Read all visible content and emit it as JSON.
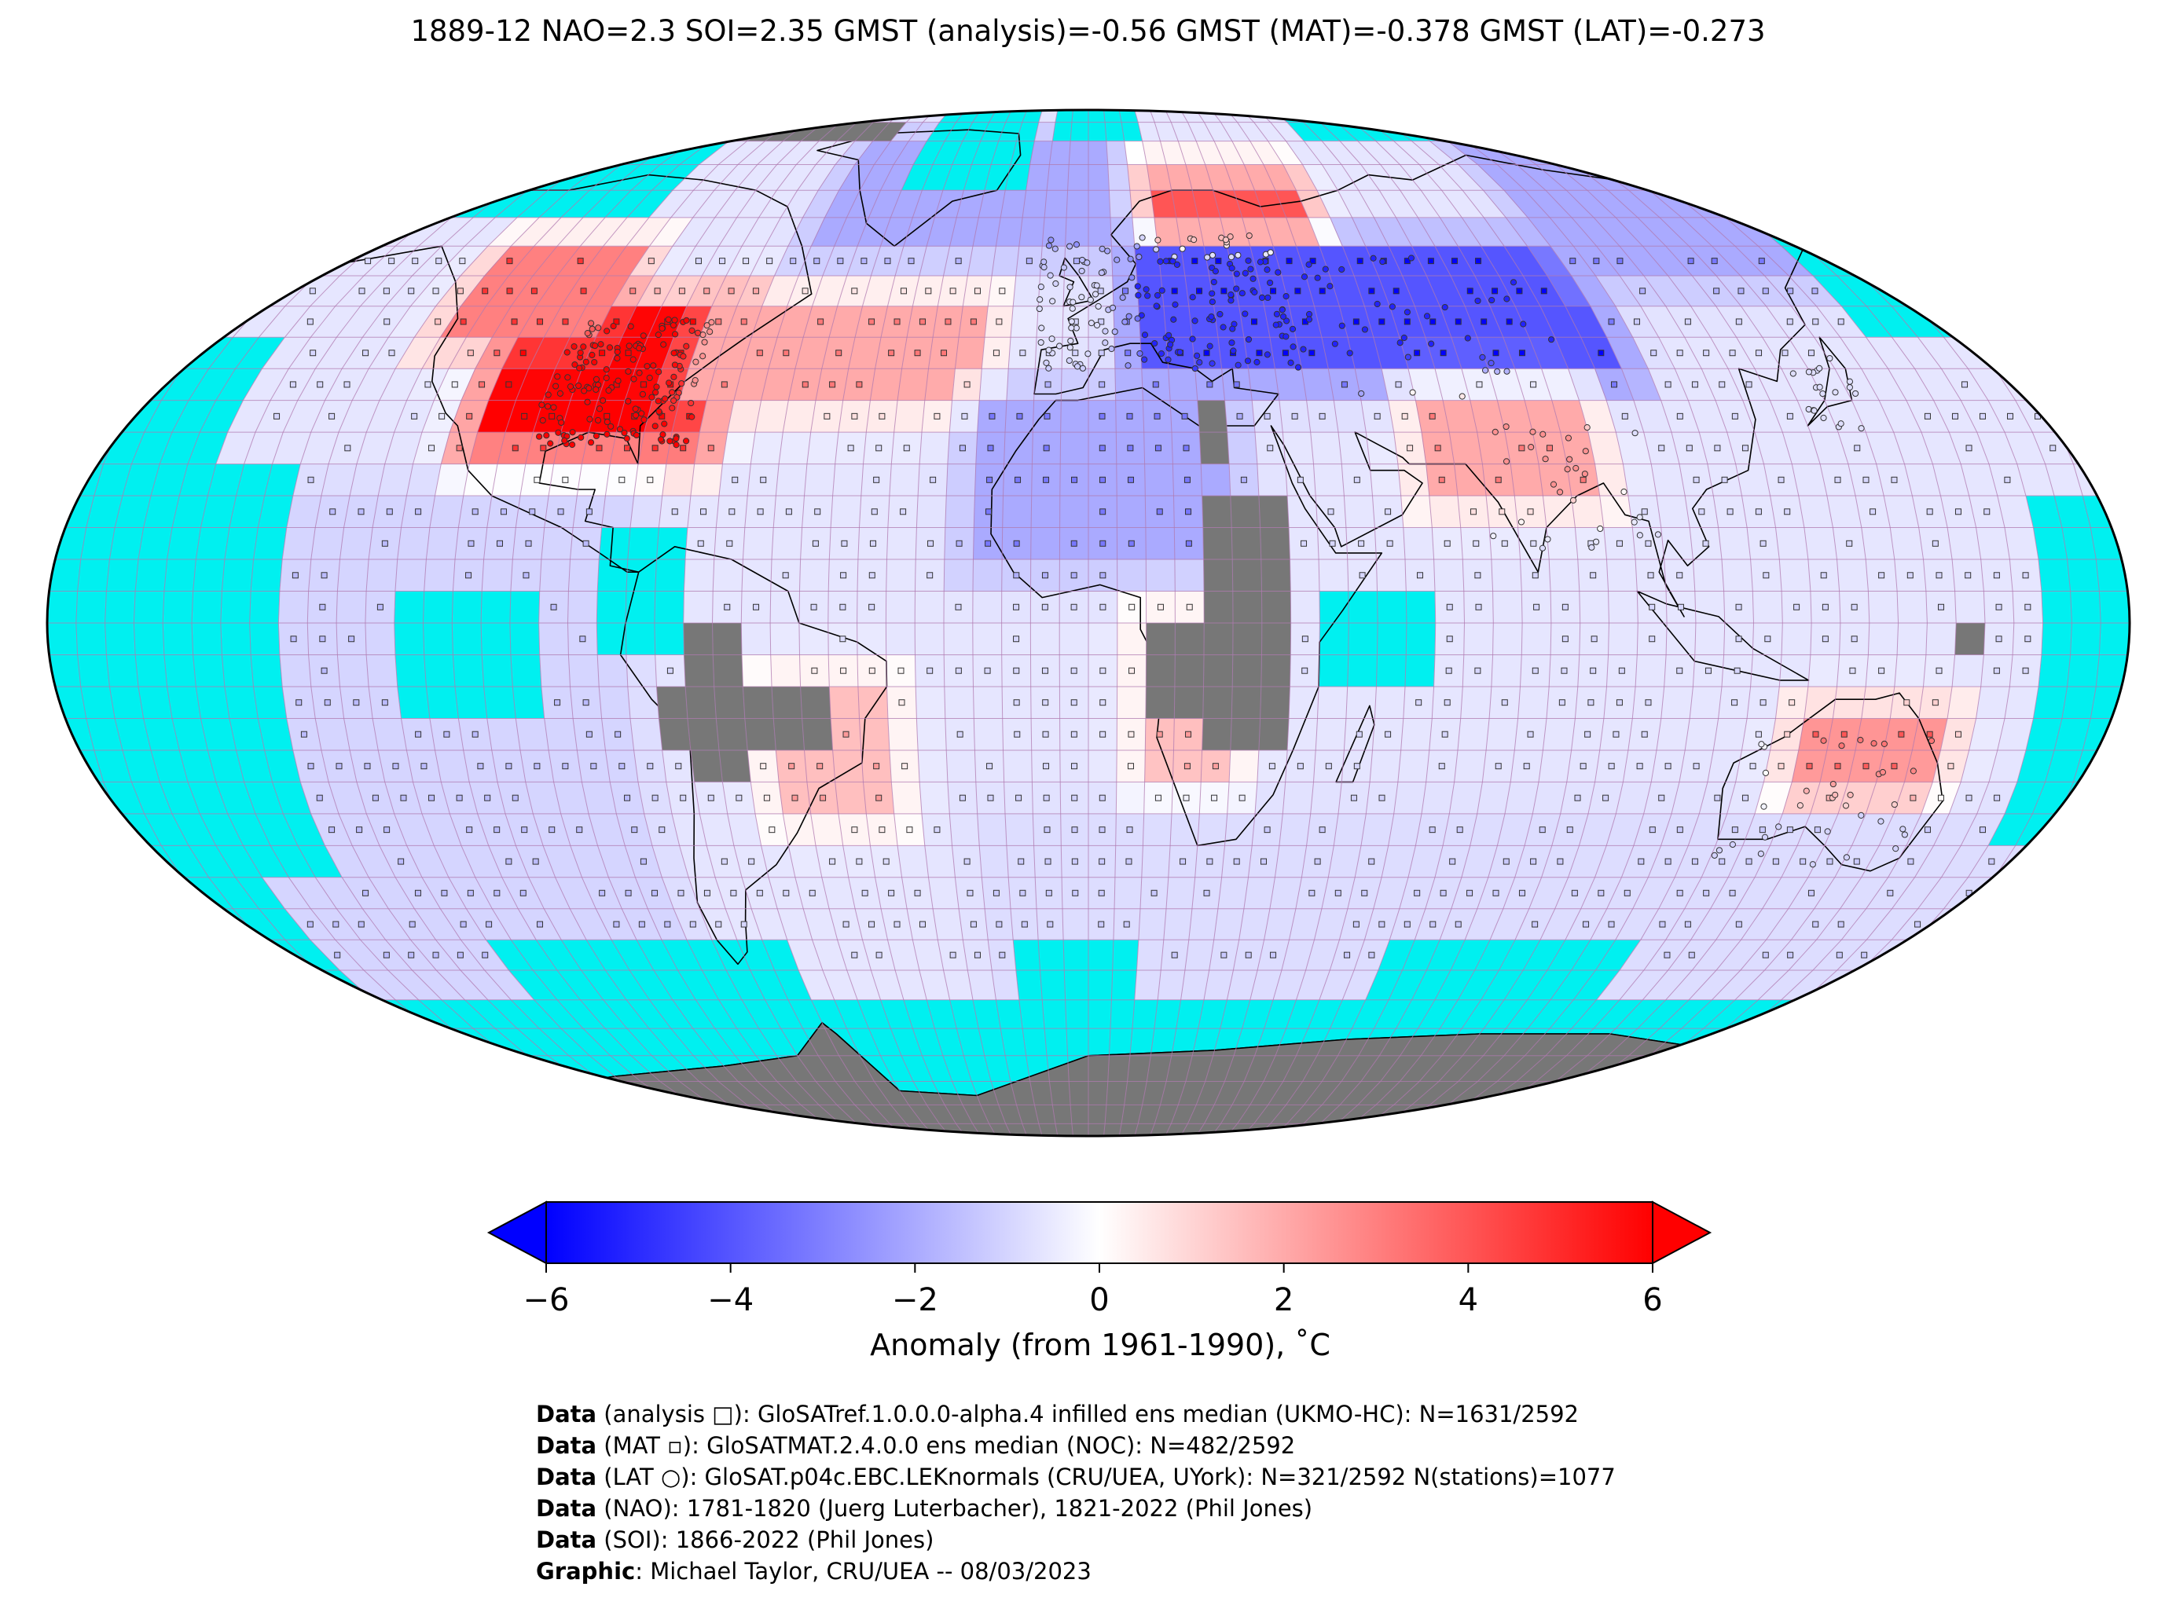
{
  "title": "1889-12 NAO=2.3 SOI=2.35 GMST (analysis)=-0.56 GMST (MAT)=-0.378 GMST (LAT)=-0.273",
  "colorbar": {
    "label": "Anomaly (from 1961-1990), ˚C",
    "ticks": [
      "−6",
      "−4",
      "−2",
      "0",
      "2",
      "4",
      "6"
    ],
    "min": -6,
    "max": 6,
    "colors": {
      "cold": "#0000ff",
      "neutral": "#ffffff",
      "warm": "#ff0000"
    }
  },
  "map_colors": {
    "ocean_no_data": "#00f0f0",
    "land_no_data": "#777777",
    "grid_line": "#b07ab0",
    "coast": "#000000"
  },
  "credits": [
    {
      "key": "Data",
      "text": " (analysis □): GloSATref.1.0.0.0-alpha.4 infilled ens median (UKMO-HC): N=1631/2592"
    },
    {
      "key": "Data",
      "text": " (MAT ▫): GloSATMAT.2.4.0.0 ens median (NOC): N=482/2592"
    },
    {
      "key": "Data",
      "text": " (LAT ○): GloSAT.p04c.EBC.LEKnormals (CRU/UEA, UYork): N=321/2592 N(stations)=1077"
    },
    {
      "key": "Data",
      "text": " (NAO): 1781-1820 (Juerg Luterbacher), 1821-2022 (Phil Jones)"
    },
    {
      "key": "Data",
      "text": " (SOI): 1866-2022 (Phil Jones)"
    },
    {
      "key": "Graphic",
      "text": ": Michael Taylor, CRU/UEA -- 08/03/2023"
    }
  ],
  "chart_data": {
    "type": "heatmap",
    "projection": "Robinson",
    "grid_resolution_deg": 5,
    "region_anomalies": [
      {
        "lon": [
          -110,
          -70
        ],
        "lat": [
          28,
          48
        ],
        "value": 6.0
      },
      {
        "lon": [
          -125,
          -95
        ],
        "lat": [
          45,
          58
        ],
        "value": 3.0
      },
      {
        "lon": [
          -75,
          -20
        ],
        "lat": [
          35,
          50
        ],
        "value": 2.0
      },
      {
        "lon": [
          15,
          50
        ],
        "lat": [
          58,
          72
        ],
        "value": 4.0
      },
      {
        "lon": [
          10,
          100
        ],
        "lat": [
          40,
          58
        ],
        "value": -4.0
      },
      {
        "lon": [
          -60,
          5
        ],
        "lat": [
          60,
          80
        ],
        "value": -2.0
      },
      {
        "lon": [
          100,
          180
        ],
        "lat": [
          55,
          80
        ],
        "value": -2.0
      },
      {
        "lon": [
          -20,
          25
        ],
        "lat": [
          10,
          35
        ],
        "value": -2.0
      },
      {
        "lon": [
          60,
          90
        ],
        "lat": [
          20,
          35
        ],
        "value": 2.0
      },
      {
        "lon": [
          125,
          150
        ],
        "lat": [
          -35,
          -15
        ],
        "value": 2.5
      },
      {
        "lon": [
          -55,
          -35
        ],
        "lat": [
          -30,
          -10
        ],
        "value": 1.5
      },
      {
        "lon": [
          10,
          25
        ],
        "lat": [
          -25,
          0
        ],
        "value": 1.5
      },
      {
        "lon": [
          -180,
          -80
        ],
        "lat": [
          -60,
          20
        ],
        "value": -1.0
      },
      {
        "lon": [
          -20,
          180
        ],
        "lat": [
          -60,
          -30
        ],
        "value": -0.8
      }
    ],
    "default_anomaly": -0.6
  }
}
